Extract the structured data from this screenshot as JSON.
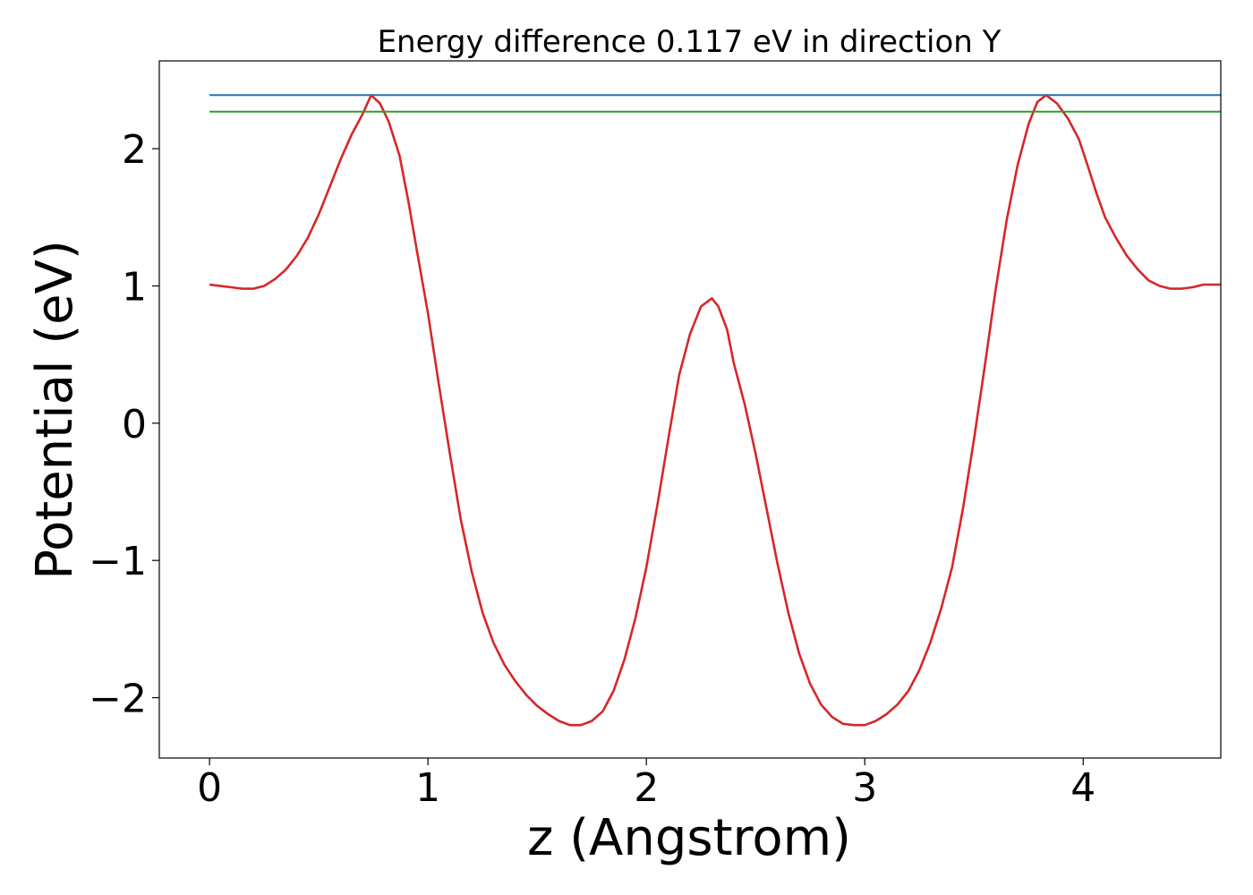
{
  "chart_data": {
    "type": "line",
    "title": "Energy difference 0.117 eV in direction Y",
    "xlabel": "z (Angstrom)",
    "ylabel": "Potential (eV)",
    "xlim": [
      -0.23,
      4.63
    ],
    "ylim": [
      -2.44,
      2.64
    ],
    "xticks": [
      0,
      1,
      2,
      3,
      4
    ],
    "xtick_labels": [
      "0",
      "1",
      "2",
      "3",
      "4"
    ],
    "yticks": [
      -2,
      -1,
      0,
      1,
      2
    ],
    "ytick_labels": [
      "−2",
      "−1",
      "0",
      "1",
      "2"
    ],
    "grid": false,
    "legend": "none",
    "series": [
      {
        "color": "#d62728",
        "x": [
          0.0,
          0.1,
          0.15,
          0.2,
          0.25,
          0.3,
          0.35,
          0.4,
          0.45,
          0.5,
          0.55,
          0.6,
          0.65,
          0.7,
          0.74,
          0.78,
          0.82,
          0.87,
          0.91,
          0.95,
          1.0,
          1.05,
          1.1,
          1.15,
          1.2,
          1.25,
          1.3,
          1.35,
          1.4,
          1.45,
          1.5,
          1.55,
          1.6,
          1.65,
          1.7,
          1.75,
          1.8,
          1.85,
          1.9,
          1.95,
          2.0,
          2.05,
          2.1,
          2.15,
          2.2,
          2.25,
          2.3,
          2.33,
          2.37,
          2.4,
          2.45,
          2.5,
          2.55,
          2.6,
          2.65,
          2.7,
          2.75,
          2.8,
          2.85,
          2.9,
          2.95,
          3.0,
          3.05,
          3.1,
          3.15,
          3.2,
          3.25,
          3.3,
          3.35,
          3.4,
          3.45,
          3.5,
          3.55,
          3.6,
          3.65,
          3.7,
          3.75,
          3.79,
          3.83,
          3.88,
          3.93,
          3.98,
          4.02,
          4.06,
          4.1,
          4.15,
          4.2,
          4.25,
          4.3,
          4.35,
          4.4,
          4.45,
          4.5,
          4.55,
          4.63
        ],
        "y": [
          1.01,
          0.99,
          0.98,
          0.98,
          1.0,
          1.05,
          1.12,
          1.22,
          1.35,
          1.52,
          1.72,
          1.92,
          2.1,
          2.25,
          2.39,
          2.33,
          2.2,
          1.95,
          1.62,
          1.25,
          0.8,
          0.28,
          -0.22,
          -0.7,
          -1.08,
          -1.38,
          -1.6,
          -1.76,
          -1.88,
          -1.98,
          -2.06,
          -2.12,
          -2.17,
          -2.2,
          -2.2,
          -2.17,
          -2.1,
          -1.95,
          -1.72,
          -1.42,
          -1.05,
          -0.6,
          -0.12,
          0.35,
          0.65,
          0.85,
          0.91,
          0.85,
          0.68,
          0.44,
          0.14,
          -0.22,
          -0.62,
          -1.02,
          -1.38,
          -1.68,
          -1.9,
          -2.05,
          -2.14,
          -2.19,
          -2.2,
          -2.2,
          -2.17,
          -2.12,
          -2.05,
          -1.95,
          -1.8,
          -1.6,
          -1.35,
          -1.05,
          -0.62,
          -0.12,
          0.42,
          0.98,
          1.48,
          1.88,
          2.18,
          2.34,
          2.39,
          2.33,
          2.22,
          2.07,
          1.88,
          1.68,
          1.5,
          1.35,
          1.22,
          1.12,
          1.04,
          1.0,
          0.98,
          0.98,
          0.99,
          1.01,
          1.01
        ]
      },
      {
        "color": "#1f77b4",
        "x": [
          0.0,
          4.63
        ],
        "y": [
          2.39,
          2.39
        ]
      },
      {
        "color": "#2ca02c",
        "x": [
          0.0,
          4.63
        ],
        "y": [
          2.27,
          2.27
        ]
      }
    ]
  }
}
